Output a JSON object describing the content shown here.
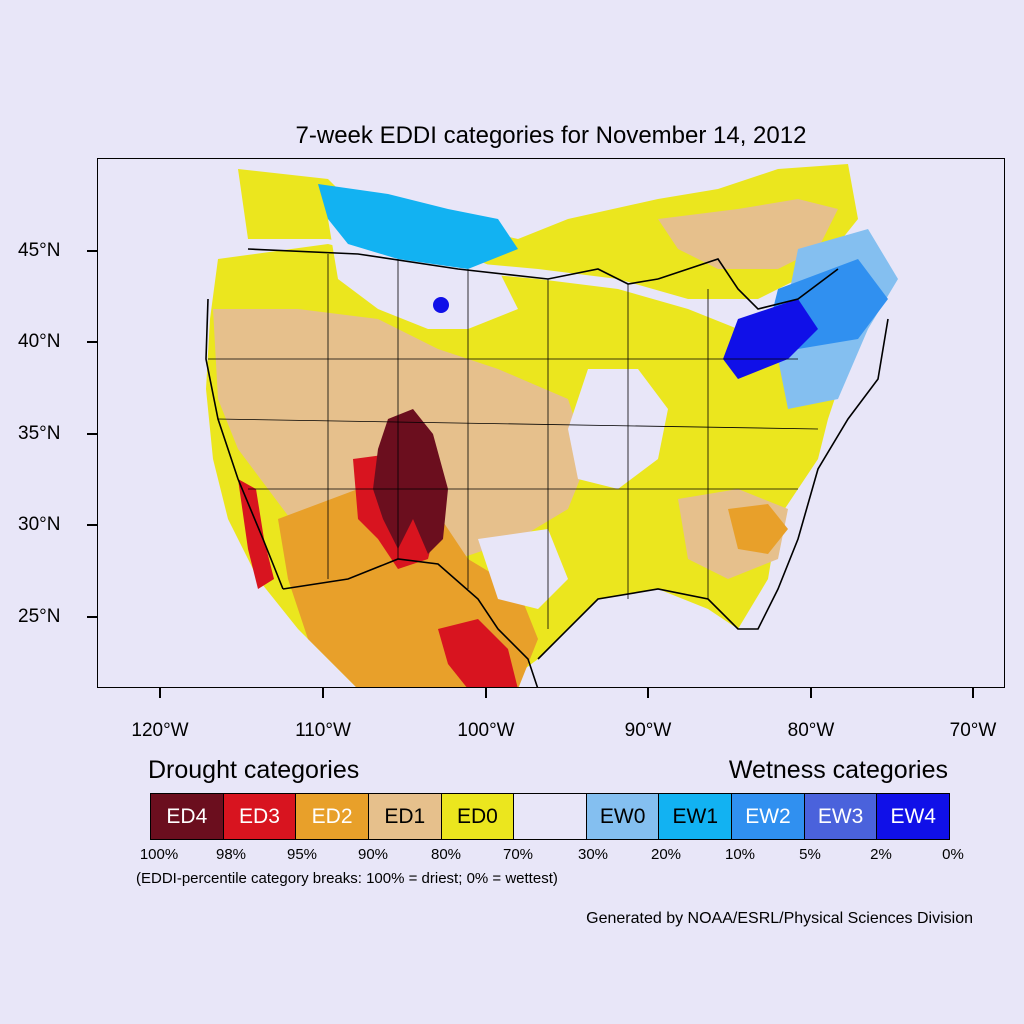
{
  "title": "7-week EDDI categories for November 14, 2012",
  "y_ticks": [
    "45°N",
    "40°N",
    "35°N",
    "30°N",
    "25°N"
  ],
  "x_ticks": [
    "120°W",
    "110°W",
    "100°W",
    "90°W",
    "80°W",
    "70°W"
  ],
  "legend": {
    "drought_heading": "Drought categories",
    "wetness_heading": "Wetness categories",
    "categories": [
      {
        "label": "ED4",
        "color": "#6b0e1e",
        "text_color": "#ffffff"
      },
      {
        "label": "ED3",
        "color": "#d8141f",
        "text_color": "#ffffff"
      },
      {
        "label": "ED2",
        "color": "#e8a02a",
        "text_color": "#ffffff"
      },
      {
        "label": "ED1",
        "color": "#e6c08c",
        "text_color": "#000000"
      },
      {
        "label": "ED0",
        "color": "#ebe61e",
        "text_color": "#000000"
      },
      {
        "label": "",
        "color": "#e8e6f8",
        "text_color": "#000000"
      },
      {
        "label": "EW0",
        "color": "#84bff0",
        "text_color": "#000000"
      },
      {
        "label": "EW1",
        "color": "#12b2f2",
        "text_color": "#000000"
      },
      {
        "label": "EW2",
        "color": "#3090f0",
        "text_color": "#ffffff"
      },
      {
        "label": "EW3",
        "color": "#4a62dc",
        "text_color": "#ffffff"
      },
      {
        "label": "EW4",
        "color": "#1010e8",
        "text_color": "#ffffff"
      }
    ],
    "breaks": [
      "100%",
      "98%",
      "95%",
      "90%",
      "80%",
      "70%",
      "30%",
      "20%",
      "10%",
      "5%",
      "2%",
      "0%"
    ],
    "note": "(EDDI-percentile category breaks: 100% = driest; 0% = wettest)"
  },
  "credit": "Generated by NOAA/ESRL/Physical Sciences Division"
}
